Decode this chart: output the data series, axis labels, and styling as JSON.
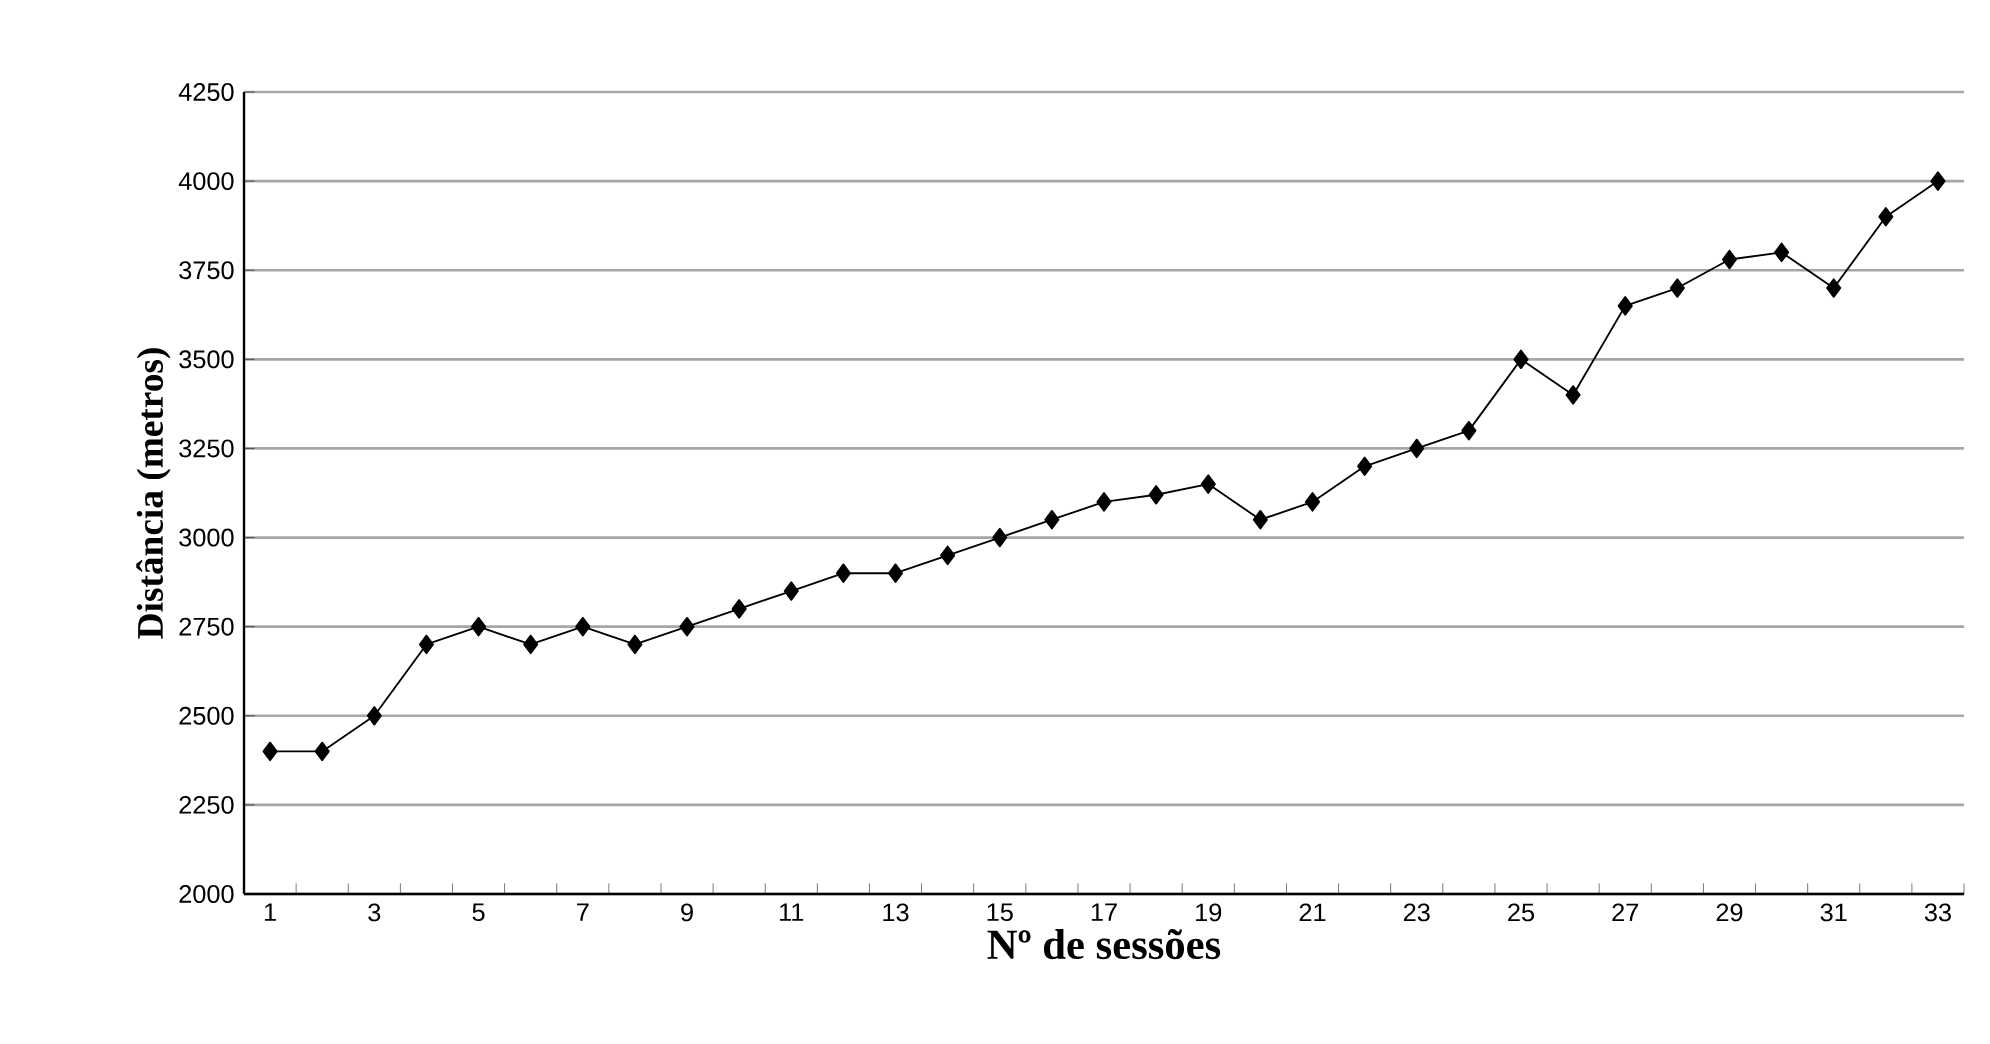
{
  "chart_data": {
    "type": "line",
    "xlabel": "Nº de sessões",
    "ylabel": "Distância (metros)",
    "categories": [
      "1",
      null,
      "3",
      null,
      "5",
      null,
      "7",
      null,
      "9",
      null,
      "11",
      null,
      "13",
      null,
      "15",
      null,
      "17",
      null,
      "19",
      null,
      "21",
      null,
      "23",
      null,
      "25",
      null,
      "27",
      null,
      "29",
      null,
      "31",
      null,
      "33"
    ],
    "values": [
      2400,
      2400,
      2500,
      2700,
      2750,
      2700,
      2750,
      2700,
      2750,
      2800,
      2850,
      2900,
      2900,
      2950,
      3000,
      3050,
      3100,
      3120,
      3150,
      3050,
      3100,
      3200,
      3250,
      3300,
      3500,
      3400,
      3650,
      3700,
      3780,
      3800,
      3700,
      3900,
      4000
    ],
    "color": "#000000",
    "marker": "diamond",
    "line_style": "solid",
    "grid": "y",
    "ylim": [
      2000,
      4250
    ],
    "yticks": [
      2000,
      2250,
      2500,
      2750,
      3000,
      3250,
      3500,
      3750,
      4000,
      4250
    ]
  }
}
